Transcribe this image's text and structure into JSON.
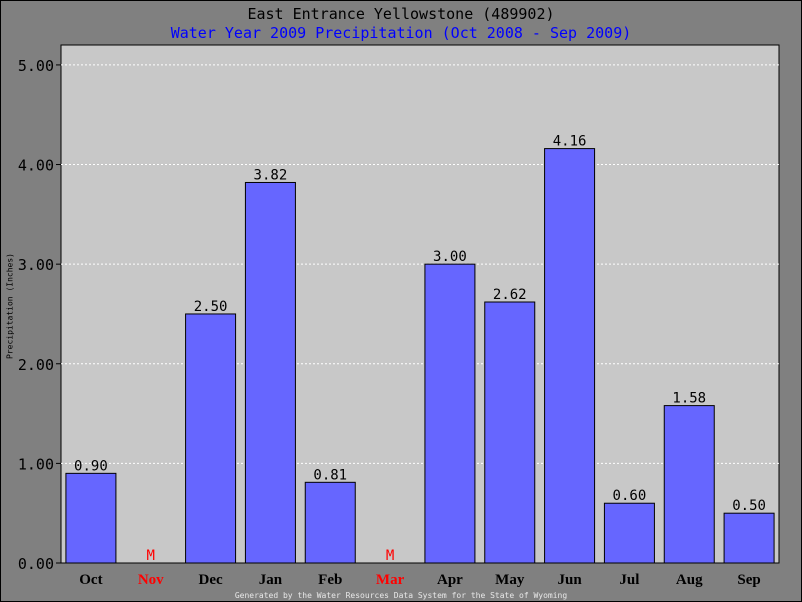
{
  "chart_data": {
    "type": "bar",
    "title": "East Entrance Yellowstone (489902)",
    "subtitle": "Water Year 2009 Precipitation (Oct 2008 - Sep 2009)",
    "xlabel": "",
    "ylabel": "Precipitation (Inches)",
    "footer": "Generated by the Water Resources Data System for the State of Wyoming",
    "categories": [
      "Oct",
      "Nov",
      "Dec",
      "Jan",
      "Feb",
      "Mar",
      "Apr",
      "May",
      "Jun",
      "Jul",
      "Aug",
      "Sep"
    ],
    "values": [
      0.9,
      null,
      2.5,
      3.82,
      0.81,
      null,
      3.0,
      2.62,
      4.16,
      0.6,
      1.58,
      0.5
    ],
    "value_labels": [
      "0.90",
      "M",
      "2.50",
      "3.82",
      "0.81",
      "M",
      "3.00",
      "2.62",
      "4.16",
      "0.60",
      "1.58",
      "0.50"
    ],
    "missing": [
      false,
      true,
      false,
      false,
      false,
      true,
      false,
      false,
      false,
      false,
      false,
      false
    ],
    "y_ticks": [
      0,
      1,
      2,
      3,
      4,
      5
    ],
    "y_tick_labels": [
      "0.00",
      "1.00",
      "2.00",
      "3.00",
      "4.00",
      "5.00"
    ],
    "ylim": [
      0,
      5.2
    ],
    "grid": true,
    "legend": "none",
    "colors": {
      "background": "#808080",
      "plot_area": "#c8c8c8",
      "bar": "#6666ff",
      "bar_outline": "#000000",
      "gridline": "#ffffff",
      "subtitle": "#0000ff",
      "missing": "#ff0000",
      "text": "#000000",
      "footer": "#e8e8e8"
    }
  }
}
